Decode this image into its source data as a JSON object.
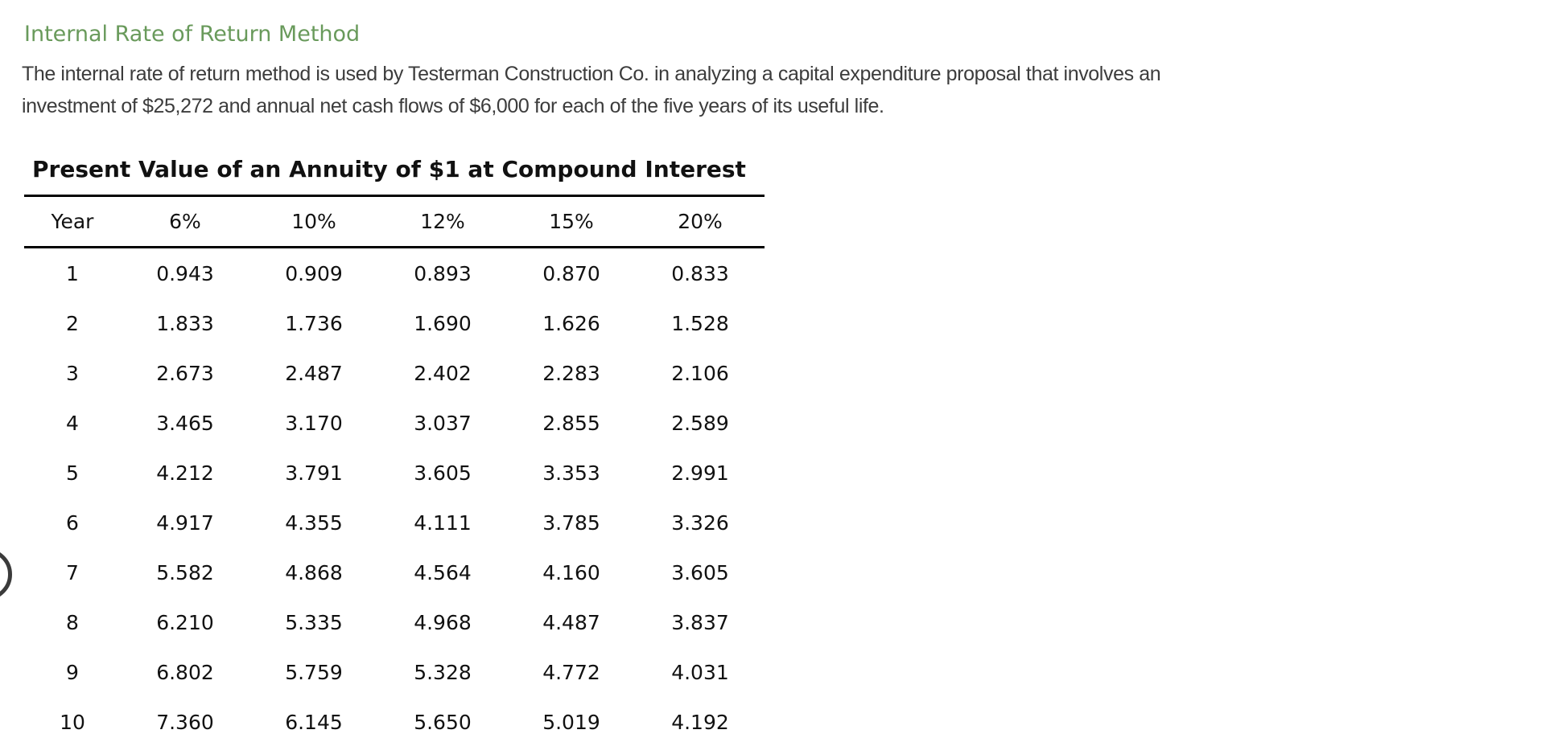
{
  "page": {
    "heading": "Internal Rate of Return Method",
    "paragraph_line1": "The internal rate of return method is used by Testerman Construction Co. in analyzing a capital expenditure proposal that involves an",
    "paragraph_line2": "investment of $25,272 and annual net cash flows of $6,000 for each of the five years of its useful life."
  },
  "table": {
    "title": "Present Value of an Annuity of $1 at Compound Interest",
    "columns": [
      "Year",
      "6%",
      "10%",
      "12%",
      "15%",
      "20%"
    ],
    "rows": [
      [
        "1",
        "0.943",
        "0.909",
        "0.893",
        "0.870",
        "0.833"
      ],
      [
        "2",
        "1.833",
        "1.736",
        "1.690",
        "1.626",
        "1.528"
      ],
      [
        "3",
        "2.673",
        "2.487",
        "2.402",
        "2.283",
        "2.106"
      ],
      [
        "4",
        "3.465",
        "3.170",
        "3.037",
        "2.855",
        "2.589"
      ],
      [
        "5",
        "4.212",
        "3.791",
        "3.605",
        "3.353",
        "2.991"
      ],
      [
        "6",
        "4.917",
        "4.355",
        "4.111",
        "3.785",
        "3.326"
      ],
      [
        "7",
        "5.582",
        "4.868",
        "4.564",
        "4.160",
        "3.605"
      ],
      [
        "8",
        "6.210",
        "5.335",
        "4.968",
        "4.487",
        "3.837"
      ],
      [
        "9",
        "6.802",
        "5.759",
        "5.328",
        "4.772",
        "4.031"
      ],
      [
        "10",
        "7.360",
        "6.145",
        "5.650",
        "5.019",
        "4.192"
      ]
    ]
  },
  "colors": {
    "heading_green": "#699a5b",
    "body_text": "#3c3c3c",
    "table_text": "#111111",
    "rule_black": "#000000"
  }
}
